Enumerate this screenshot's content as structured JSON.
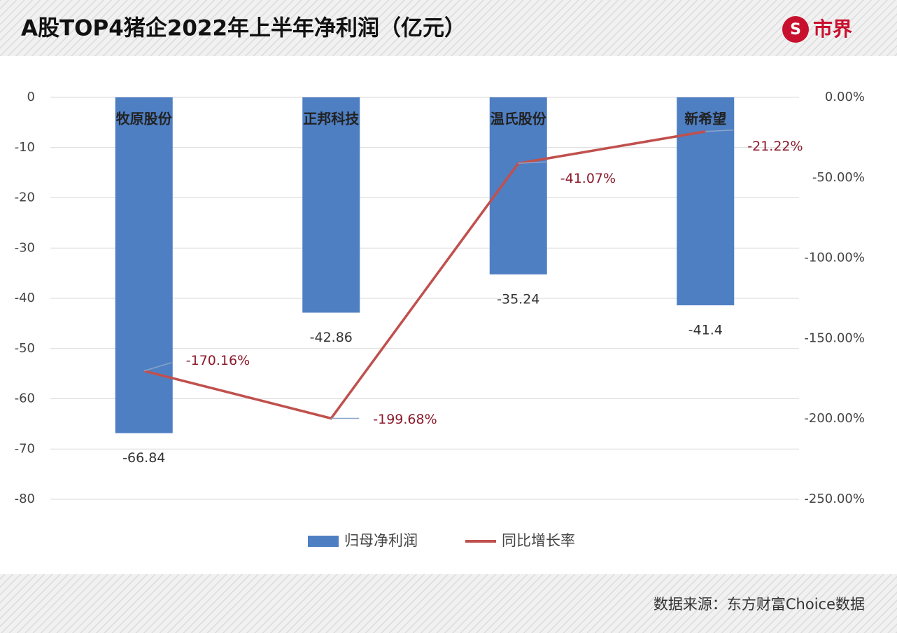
{
  "logo": "市界",
  "chart_data": {
    "type": "bar",
    "title": "A股TOP4猪企2022年上半年净利润（亿元）",
    "source": "数据来源：东方财富Choice数据",
    "categories": [
      "牧原股份",
      "正邦科技",
      "温氏股份",
      "新希望"
    ],
    "series": [
      {
        "name": "归母净利润",
        "type": "bar",
        "color": "#4f7fc3",
        "values": [
          -66.84,
          -42.86,
          -35.24,
          -41.4
        ]
      },
      {
        "name": "同比增长率",
        "type": "line",
        "axis": "y2",
        "color": "#c0504d",
        "values": [
          -170.16,
          -199.68,
          -41.07,
          -21.22
        ],
        "value_labels": [
          "-170.16%",
          "-199.68%",
          "-41.07%",
          "-21.22%"
        ]
      }
    ],
    "ylim": [
      0,
      -80
    ],
    "yticks": [
      0,
      -10,
      -20,
      -30,
      -40,
      -50,
      -60,
      -70,
      -80
    ],
    "y2lim": [
      0,
      -250
    ],
    "y2ticks": [
      {
        "value": 0,
        "label": "0.00%"
      },
      {
        "value": -50,
        "label": "-50.00%"
      },
      {
        "value": -100,
        "label": "-100.00%"
      },
      {
        "value": -150,
        "label": "-150.00%"
      },
      {
        "value": -200,
        "label": "-200.00%"
      },
      {
        "value": -250,
        "label": "-250.00%"
      }
    ],
    "grid": true,
    "legend": "bottom"
  }
}
